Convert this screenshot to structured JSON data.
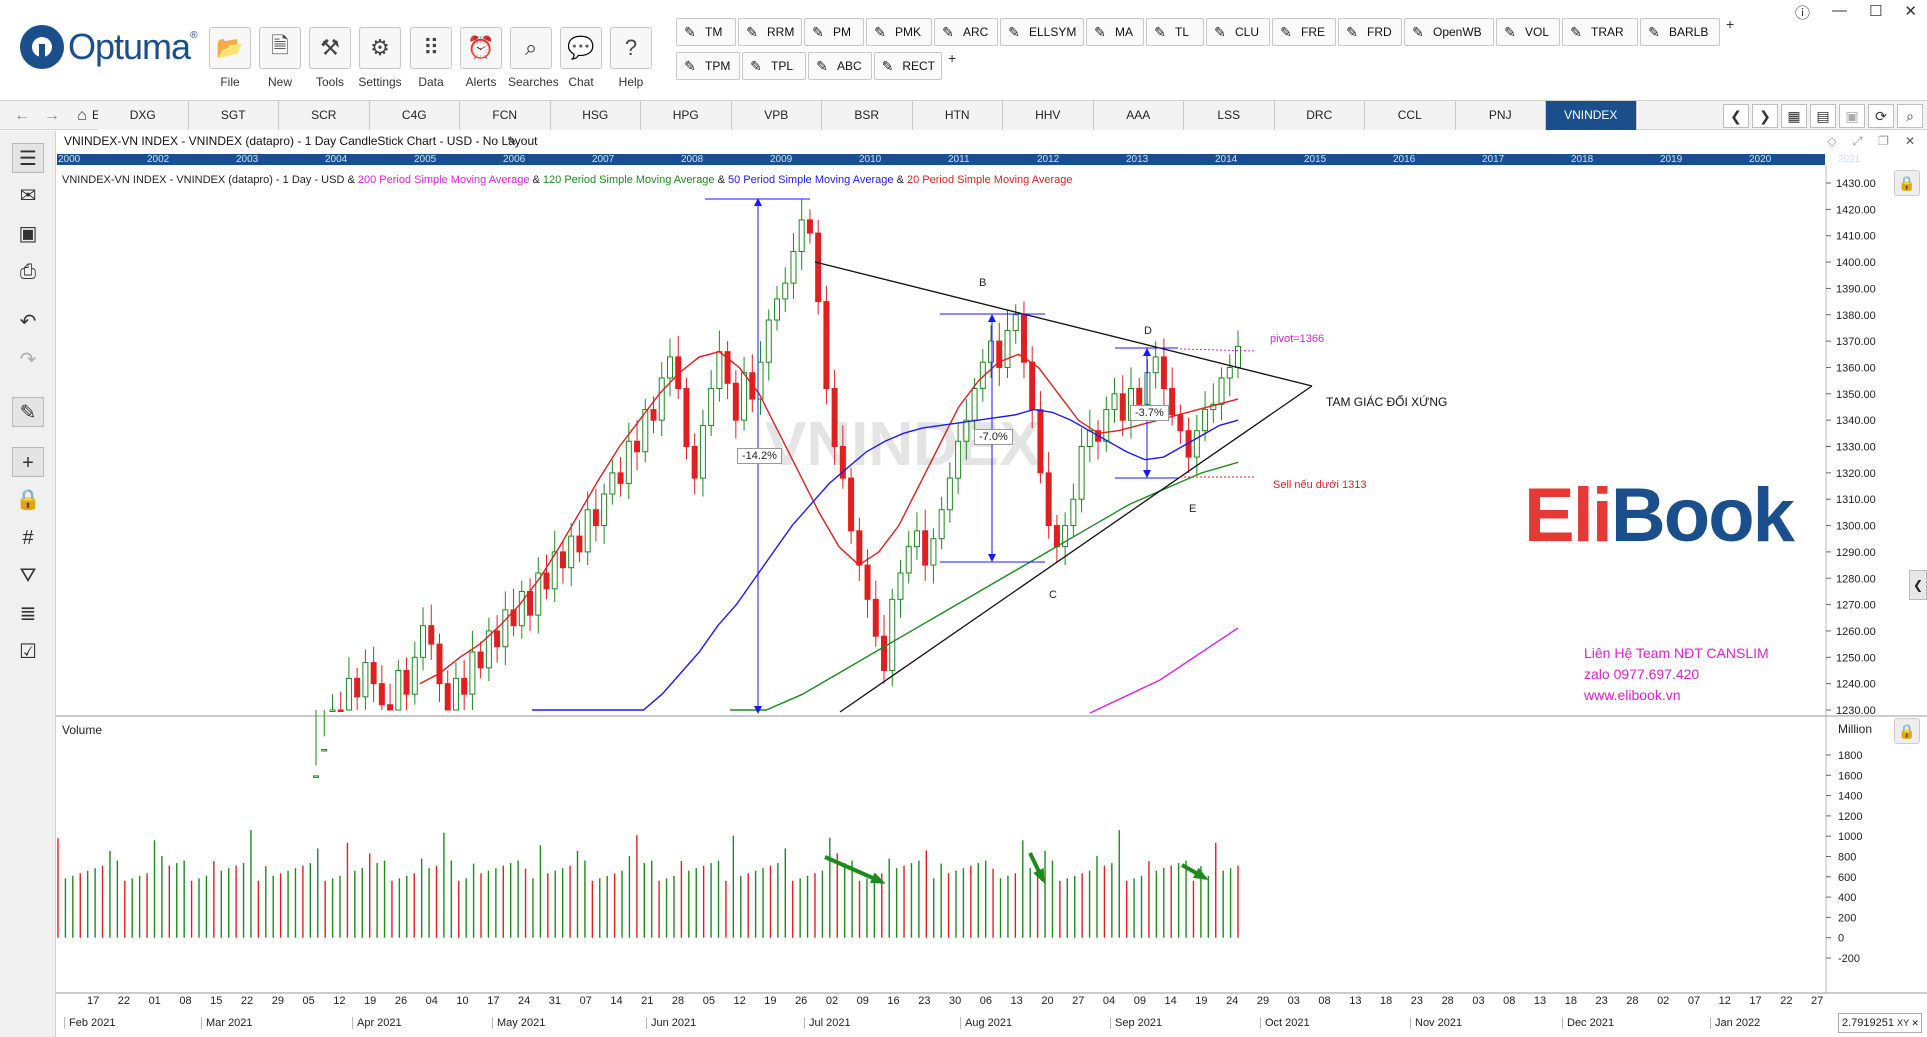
{
  "app": {
    "logo_text": "Optuma",
    "logo_mark": "®",
    "window_controls": [
      "ⓘ",
      "—",
      "☐",
      "✕"
    ]
  },
  "toolbar": {
    "buttons": [
      {
        "label": "File",
        "icon": "folder-icon"
      },
      {
        "label": "New",
        "icon": "new-chart-icon"
      },
      {
        "label": "Tools",
        "icon": "tools-icon"
      },
      {
        "label": "Settings",
        "icon": "gear-icon"
      },
      {
        "label": "Data",
        "icon": "data-icon"
      },
      {
        "label": "Alerts",
        "icon": "alarm-clock-icon"
      },
      {
        "label": "Searches",
        "icon": "search-icon"
      },
      {
        "label": "Chat",
        "icon": "chat-icon"
      },
      {
        "label": "Help",
        "icon": "help-icon"
      }
    ],
    "draw_row1": [
      "TM",
      "RRM",
      "PM",
      "PMK",
      "ARC",
      "ELLSYM",
      "MA",
      "TL",
      "CLU",
      "FRE",
      "FRD",
      "OpenWB",
      "VOL",
      "TRAR",
      "BARLB"
    ],
    "draw_row2": [
      "TPM",
      "TPL",
      "ABC",
      "RECT"
    ],
    "plus": "+"
  },
  "tabs": [
    "DXG",
    "SGT",
    "SCR",
    "C4G",
    "FCN",
    "HSG",
    "HPG",
    "VPB",
    "BSR",
    "HTN",
    "HHV",
    "AAA",
    "LSS",
    "DRC",
    "CCL",
    "PNJ",
    "VNINDEX"
  ],
  "tab_partial": "E",
  "active_tab": "VNINDEX",
  "chart": {
    "title": "VNINDEX-VN INDEX - VNINDEX (datapro) - 1 Day CandleStick Chart - USD - No Layout",
    "legend_prefix": "VNINDEX-VN INDEX - VNINDEX (datapro) - 1 Day - USD & ",
    "legend_items": [
      {
        "text": "200 Period Simple Moving Average",
        "color": "#e020e0"
      },
      {
        "text": "120 Period Simple Moving Average",
        "color": "#1e8a1e"
      },
      {
        "text": "50 Period Simple Moving Average",
        "color": "#1a1aff"
      },
      {
        "text": "20 Period Simple Moving Average",
        "color": "#e02020"
      }
    ],
    "watermark": "VNINDEX",
    "years": [
      "2000",
      "2002",
      "2003",
      "2004",
      "2005",
      "2006",
      "2007",
      "2008",
      "2009",
      "2010",
      "2011",
      "2012",
      "2013",
      "2014",
      "2015",
      "2016",
      "2017",
      "2018",
      "2019",
      "2020",
      "2021"
    ],
    "annotations": {
      "B": "B",
      "C": "C",
      "D": "D",
      "E": "E",
      "pivot": "pivot=1366",
      "pattern": "TAM GIÁC ĐỐI XỨNG",
      "sell": "Sell nếu dưới 1313",
      "pct1": "-14.2%",
      "pct2": "-7.0%",
      "pct3": "-3.7%"
    },
    "brand": {
      "part1": "Eli",
      "part2": "Book"
    },
    "contact": [
      "Liên Hệ Team NĐT CANSLIM",
      "zalo 0977.697.420",
      "www.elibook.vn"
    ],
    "volume_label": "Volume",
    "million_label": "Million",
    "xy_readout": "2.7919251",
    "xy_suffix": "XY ✕"
  },
  "chart_data": {
    "type": "candlestick",
    "price_axis": {
      "min": 1230,
      "max": 1430,
      "step": 10,
      "labels": [
        "1430.00",
        "1420.00",
        "1410.00",
        "1400.00",
        "1390.00",
        "1380.00",
        "1370.00",
        "1360.00",
        "1350.00",
        "1340.00",
        "1330.00",
        "1320.00",
        "1310.00",
        "1300.00",
        "1290.00",
        "1280.00",
        "1270.00",
        "1260.00",
        "1250.00",
        "1240.00",
        "1230.00"
      ]
    },
    "volume_axis": {
      "min": -200,
      "max": 1800,
      "labels": [
        "1800",
        "1600",
        "1400",
        "1200",
        "1000",
        "800",
        "600",
        "400",
        "200",
        "0",
        "-200"
      ]
    },
    "day_ticks": [
      "17",
      "22",
      "01",
      "08",
      "15",
      "22",
      "29",
      "05",
      "12",
      "19",
      "26",
      "04",
      "10",
      "17",
      "24",
      "31",
      "07",
      "14",
      "21",
      "28",
      "05",
      "12",
      "19",
      "26",
      "02",
      "09",
      "16",
      "23",
      "30",
      "06",
      "13",
      "20",
      "27",
      "04",
      "09",
      "14",
      "19",
      "24",
      "29",
      "03",
      "08",
      "13",
      "18",
      "23",
      "28",
      "03",
      "08",
      "13",
      "18",
      "23",
      "28",
      "02",
      "07",
      "12",
      "17",
      "22",
      "27"
    ],
    "month_labels": [
      "Feb 2021",
      "Mar 2021",
      "Apr 2021",
      "May 2021",
      "Jun 2021",
      "Jul 2021",
      "Aug 2021",
      "Sep 2021",
      "Oct 2021",
      "Nov 2021",
      "Dec 2021",
      "Jan 2022"
    ],
    "closes": [
      1205,
      1215,
      1230,
      1226,
      1242,
      1235,
      1248,
      1240,
      1232,
      1225,
      1245,
      1236,
      1250,
      1262,
      1255,
      1240,
      1228,
      1242,
      1236,
      1252,
      1246,
      1260,
      1254,
      1268,
      1262,
      1275,
      1266,
      1282,
      1276,
      1290,
      1284,
      1296,
      1290,
      1306,
      1300,
      1312,
      1320,
      1316,
      1332,
      1328,
      1344,
      1340,
      1356,
      1364,
      1352,
      1330,
      1318,
      1338,
      1352,
      1366,
      1354,
      1340,
      1358,
      1348,
      1362,
      1378,
      1386,
      1392,
      1404,
      1416,
      1411,
      1385,
      1352,
      1330,
      1318,
      1298,
      1285,
      1272,
      1258,
      1245,
      1272,
      1282,
      1292,
      1298,
      1285,
      1295,
      1306,
      1318,
      1332,
      1340,
      1352,
      1362,
      1370,
      1360,
      1374,
      1380,
      1362,
      1344,
      1320,
      1300,
      1292,
      1300,
      1310,
      1330,
      1336,
      1332,
      1344,
      1350,
      1340,
      1352,
      1346,
      1358,
      1364,
      1352,
      1342,
      1336,
      1326,
      1336,
      1344,
      1346,
      1356,
      1360,
      1368
    ],
    "ma20": [
      1240,
      1244,
      1250,
      1255,
      1262,
      1270,
      1280,
      1292,
      1305,
      1318,
      1330,
      1340,
      1350,
      1358,
      1364,
      1366,
      1360,
      1350,
      1335,
      1320,
      1305,
      1292,
      1285,
      1290,
      1300,
      1315,
      1330,
      1345,
      1355,
      1362,
      1365,
      1360,
      1350,
      1340,
      1335,
      1336,
      1338,
      1340,
      1342,
      1344,
      1346,
      1348
    ],
    "ma50": [
      1190,
      1195,
      1200,
      1206,
      1212,
      1220,
      1228,
      1236,
      1244,
      1252,
      1262,
      1270,
      1280,
      1290,
      1300,
      1308,
      1316,
      1322,
      1328,
      1332,
      1335,
      1337,
      1338,
      1339,
      1340,
      1341,
      1342,
      1344,
      1343,
      1340,
      1336,
      1332,
      1328,
      1325,
      1326,
      1330,
      1334,
      1338,
      1340
    ],
    "ma120": [
      1220,
      1228,
      1236,
      1244,
      1252,
      1260,
      1268,
      1276,
      1284,
      1292,
      1300,
      1308,
      1314,
      1320,
      1324
    ]
  }
}
